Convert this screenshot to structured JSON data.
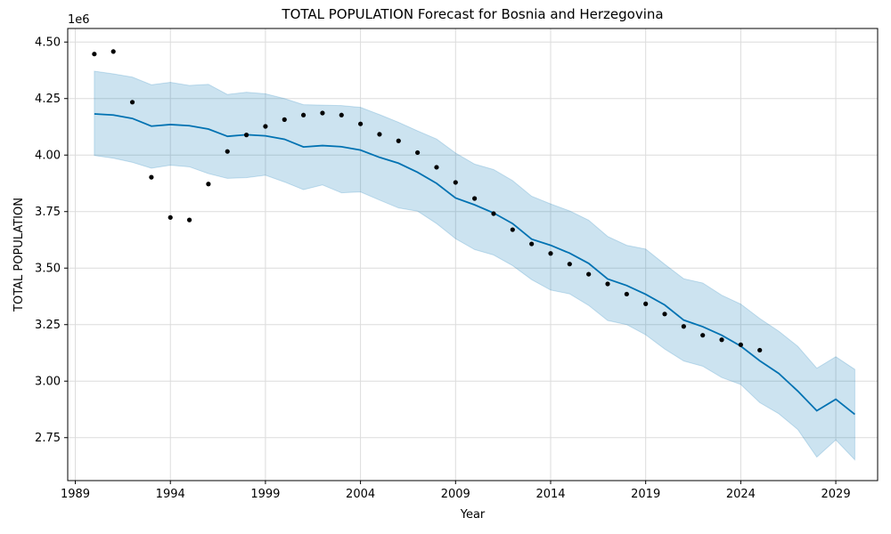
{
  "chart_data": {
    "type": "line",
    "title": "TOTAL POPULATION Forecast for Bosnia and Herzegovina",
    "xlabel": "Year",
    "ylabel": "TOTAL POPULATION",
    "y_offset_label": "1e6",
    "xlim": [
      1988.6,
      2031.2
    ],
    "ylim": [
      2.56,
      4.56
    ],
    "x_ticks": [
      1989,
      1994,
      1999,
      2004,
      2009,
      2014,
      2019,
      2024,
      2029
    ],
    "y_ticks": [
      2.75,
      3.0,
      3.25,
      3.5,
      3.75,
      4.0,
      4.25,
      4.5
    ],
    "y_tick_labels": [
      "2.75",
      "3.00",
      "3.25",
      "3.50",
      "3.75",
      "4.00",
      "4.25",
      "4.50"
    ],
    "grid": true,
    "colors": {
      "forecast_line": "#0072b2",
      "interval_fill": "#0072b2",
      "observed_points": "#000000"
    },
    "series": [
      {
        "kind": "observed",
        "x": [
          1990,
          1991,
          1992,
          1993,
          1994,
          1995,
          1996,
          1997,
          1998,
          1999,
          2000,
          2001,
          2002,
          2003,
          2004,
          2005,
          2006,
          2007,
          2008,
          2009,
          2010,
          2011,
          2012,
          2013,
          2014,
          2015,
          2016,
          2017,
          2018,
          2019,
          2020,
          2021,
          2022,
          2023,
          2024,
          2025
        ],
        "values": [
          4.447,
          4.458,
          4.234,
          3.902,
          3.724,
          3.713,
          3.872,
          4.016,
          4.089,
          4.127,
          4.157,
          4.177,
          4.186,
          4.177,
          4.138,
          4.092,
          4.063,
          4.011,
          3.946,
          3.879,
          3.808,
          3.741,
          3.67,
          3.607,
          3.565,
          3.518,
          3.473,
          3.43,
          3.385,
          3.342,
          3.297,
          3.242,
          3.203,
          3.183,
          3.161,
          3.137
        ]
      },
      {
        "kind": "forecast",
        "x": [
          1990,
          1991,
          1992,
          1993,
          1994,
          1995,
          1996,
          1997,
          1998,
          1999,
          2000,
          2001,
          2002,
          2003,
          2004,
          2005,
          2006,
          2007,
          2008,
          2009,
          2010,
          2011,
          2012,
          2013,
          2014,
          2015,
          2016,
          2017,
          2018,
          2019,
          2020,
          2021,
          2022,
          2023,
          2024,
          2025,
          2026,
          2027,
          2028,
          2029,
          2030
        ],
        "values": [
          4.182,
          4.177,
          4.162,
          4.128,
          4.135,
          4.13,
          4.115,
          4.083,
          4.09,
          4.085,
          4.07,
          4.036,
          4.042,
          4.037,
          4.022,
          3.99,
          3.964,
          3.924,
          3.875,
          3.81,
          3.78,
          3.744,
          3.697,
          3.628,
          3.601,
          3.566,
          3.521,
          3.452,
          3.423,
          3.384,
          3.337,
          3.27,
          3.241,
          3.203,
          3.155,
          3.09,
          3.034,
          2.956,
          2.869,
          2.92,
          2.853
        ],
        "lower": [
          3.998,
          3.986,
          3.968,
          3.942,
          3.955,
          3.948,
          3.918,
          3.897,
          3.9,
          3.911,
          3.881,
          3.847,
          3.868,
          3.833,
          3.837,
          3.801,
          3.766,
          3.752,
          3.697,
          3.63,
          3.582,
          3.558,
          3.511,
          3.449,
          3.403,
          3.386,
          3.335,
          3.268,
          3.25,
          3.205,
          3.142,
          3.089,
          3.066,
          3.016,
          2.985,
          2.905,
          2.856,
          2.786,
          2.664,
          2.74,
          2.652
        ]
      },
      {
        "kind": "upper_bound",
        "x": [
          1990,
          1991,
          1992,
          1993,
          1994,
          1995,
          1996,
          1997,
          1998,
          1999,
          2000,
          2001,
          2002,
          2003,
          2004,
          2005,
          2006,
          2007,
          2008,
          2009,
          2010,
          2011,
          2012,
          2013,
          2014,
          2015,
          2016,
          2017,
          2018,
          2019,
          2020,
          2021,
          2022,
          2023,
          2024,
          2025,
          2026,
          2027,
          2028,
          2029,
          2030
        ],
        "values": [
          4.371,
          4.359,
          4.345,
          4.311,
          4.322,
          4.308,
          4.313,
          4.268,
          4.278,
          4.271,
          4.25,
          4.223,
          4.221,
          4.219,
          4.211,
          4.179,
          4.145,
          4.107,
          4.071,
          4.009,
          3.96,
          3.936,
          3.887,
          3.818,
          3.784,
          3.753,
          3.712,
          3.64,
          3.601,
          3.584,
          3.517,
          3.453,
          3.434,
          3.38,
          3.341,
          3.277,
          3.221,
          3.154,
          3.057,
          3.108,
          3.052
        ]
      }
    ]
  }
}
